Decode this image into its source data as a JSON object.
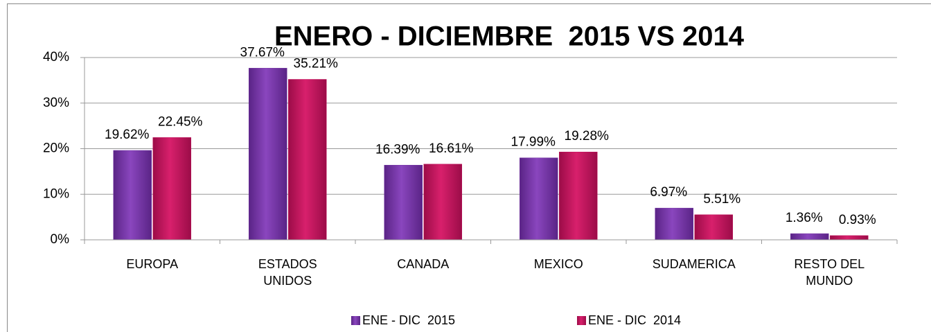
{
  "chart_data": {
    "type": "bar",
    "title": "ENERO - DICIEMBRE  2015 VS 2014",
    "categories": [
      "EUROPA",
      "ESTADOS UNIDOS",
      "CANADA",
      "MEXICO",
      "SUDAMERICA",
      "RESTO DEL MUNDO"
    ],
    "series": [
      {
        "name": "ENE - DIC  2015",
        "color": "#7030a0",
        "values": [
          19.62,
          37.67,
          16.39,
          17.99,
          6.97,
          1.36
        ],
        "value_labels": [
          "19.62%",
          "37.67%",
          "16.39%",
          "17.99%",
          "6.97%",
          "1.36%"
        ]
      },
      {
        "name": "ENE - DIC  2014",
        "color": "#c0105a",
        "values": [
          22.45,
          35.21,
          16.61,
          19.28,
          5.51,
          0.93
        ],
        "value_labels": [
          "22.45%",
          "35.21%",
          "16.61%",
          "19.28%",
          "5.51%",
          "0.93%"
        ]
      }
    ],
    "ylim": [
      0,
      40
    ],
    "yticks": [
      {
        "value": 0,
        "label": "0%"
      },
      {
        "value": 10,
        "label": "10%"
      },
      {
        "value": 20,
        "label": "20%"
      },
      {
        "value": 30,
        "label": "30%"
      },
      {
        "value": 40,
        "label": "40%"
      }
    ],
    "grid": true,
    "legend": "bottom"
  }
}
